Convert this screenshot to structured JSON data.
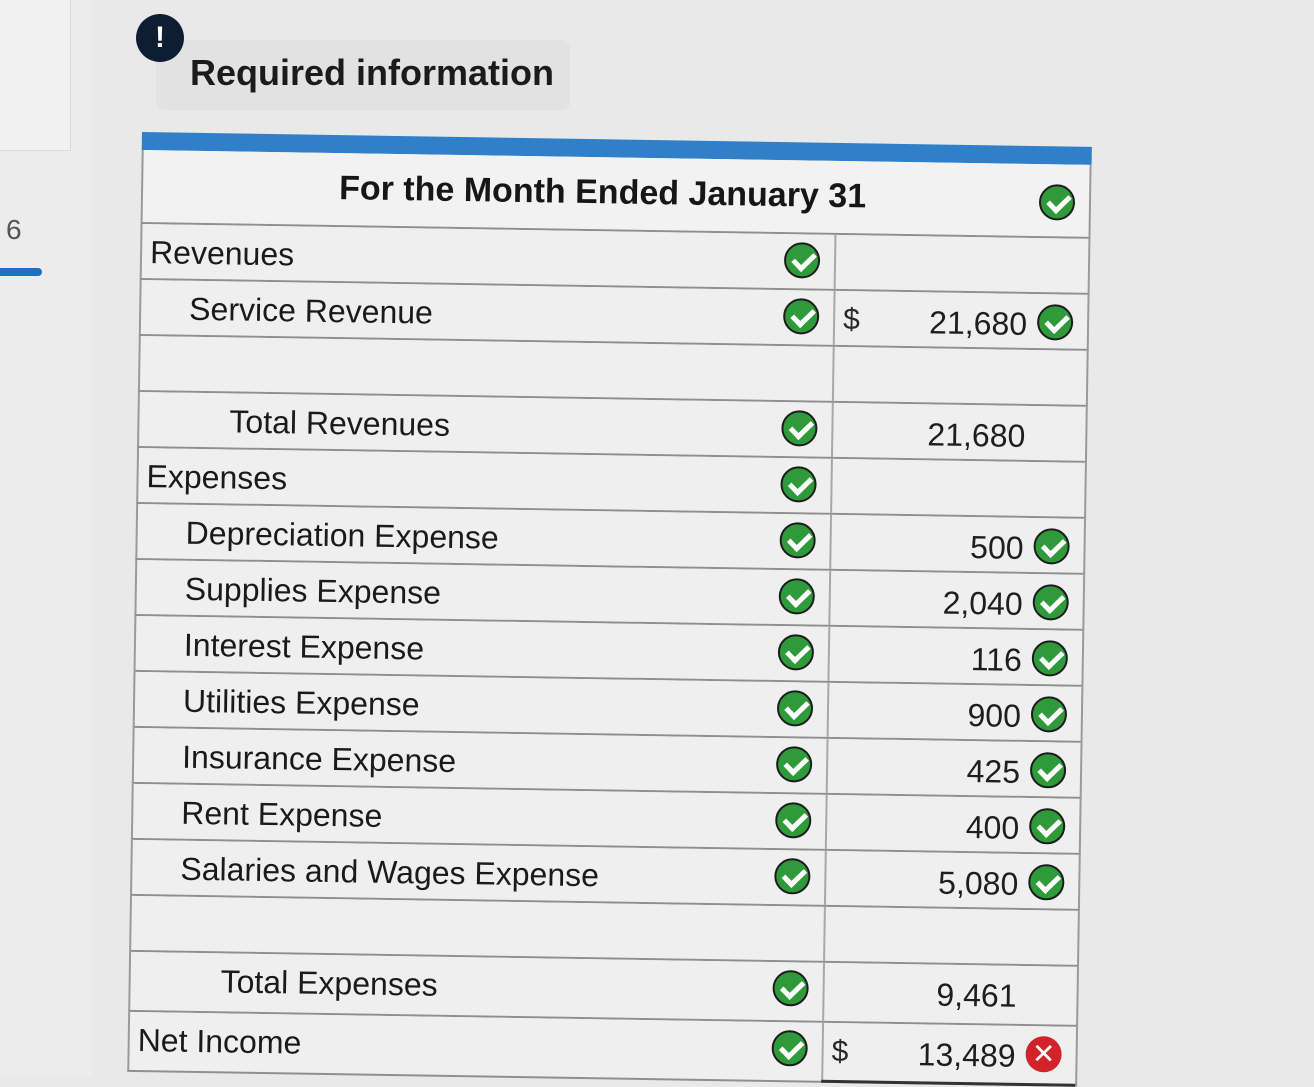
{
  "sidebar": {
    "question_number": "6"
  },
  "header": {
    "alert_symbol": "!",
    "title": "Required information"
  },
  "statement": {
    "period_header": "For the Month Ended January 31",
    "rows": [
      {
        "label": "Revenues",
        "indent": 0,
        "label_check": true,
        "dollar": "",
        "amount": "",
        "amount_status": ""
      },
      {
        "label": "Service Revenue",
        "indent": 1,
        "label_check": true,
        "dollar": "$",
        "amount": "21,680",
        "amount_status": "correct"
      },
      {
        "label": "",
        "indent": 0,
        "label_check": false,
        "dollar": "",
        "amount": "",
        "amount_status": ""
      },
      {
        "label": "Total Revenues",
        "indent": 2,
        "label_check": true,
        "dollar": "",
        "amount": "21,680",
        "amount_status": ""
      },
      {
        "label": "Expenses",
        "indent": 0,
        "label_check": true,
        "dollar": "",
        "amount": "",
        "amount_status": ""
      },
      {
        "label": "Depreciation Expense",
        "indent": 1,
        "label_check": true,
        "dollar": "",
        "amount": "500",
        "amount_status": "correct"
      },
      {
        "label": "Supplies Expense",
        "indent": 1,
        "label_check": true,
        "dollar": "",
        "amount": "2,040",
        "amount_status": "correct"
      },
      {
        "label": "Interest Expense",
        "indent": 1,
        "label_check": true,
        "dollar": "",
        "amount": "116",
        "amount_status": "correct"
      },
      {
        "label": "Utilities Expense",
        "indent": 1,
        "label_check": true,
        "dollar": "",
        "amount": "900",
        "amount_status": "correct"
      },
      {
        "label": "Insurance Expense",
        "indent": 1,
        "label_check": true,
        "dollar": "",
        "amount": "425",
        "amount_status": "correct"
      },
      {
        "label": "Rent Expense",
        "indent": 1,
        "label_check": true,
        "dollar": "",
        "amount": "400",
        "amount_status": "correct"
      },
      {
        "label": "Salaries and Wages Expense",
        "indent": 1,
        "label_check": true,
        "dollar": "",
        "amount": "5,080",
        "amount_status": "correct"
      },
      {
        "label": "",
        "indent": 0,
        "label_check": false,
        "dollar": "",
        "amount": "",
        "amount_status": ""
      },
      {
        "label": "Total Expenses",
        "indent": 2,
        "label_check": true,
        "dollar": "",
        "amount": "9,461",
        "amount_status": ""
      },
      {
        "label": "Net Income",
        "indent": 0,
        "label_check": true,
        "dollar": "$",
        "amount": "13,489",
        "amount_status": "incorrect"
      }
    ]
  },
  "colors": {
    "correct": "#2f9a3a",
    "incorrect": "#d2232a",
    "accent": "#2f7fc9"
  },
  "icons": {
    "correct": "check-circle-icon",
    "incorrect": "x-circle-icon",
    "alert": "exclamation-icon"
  }
}
